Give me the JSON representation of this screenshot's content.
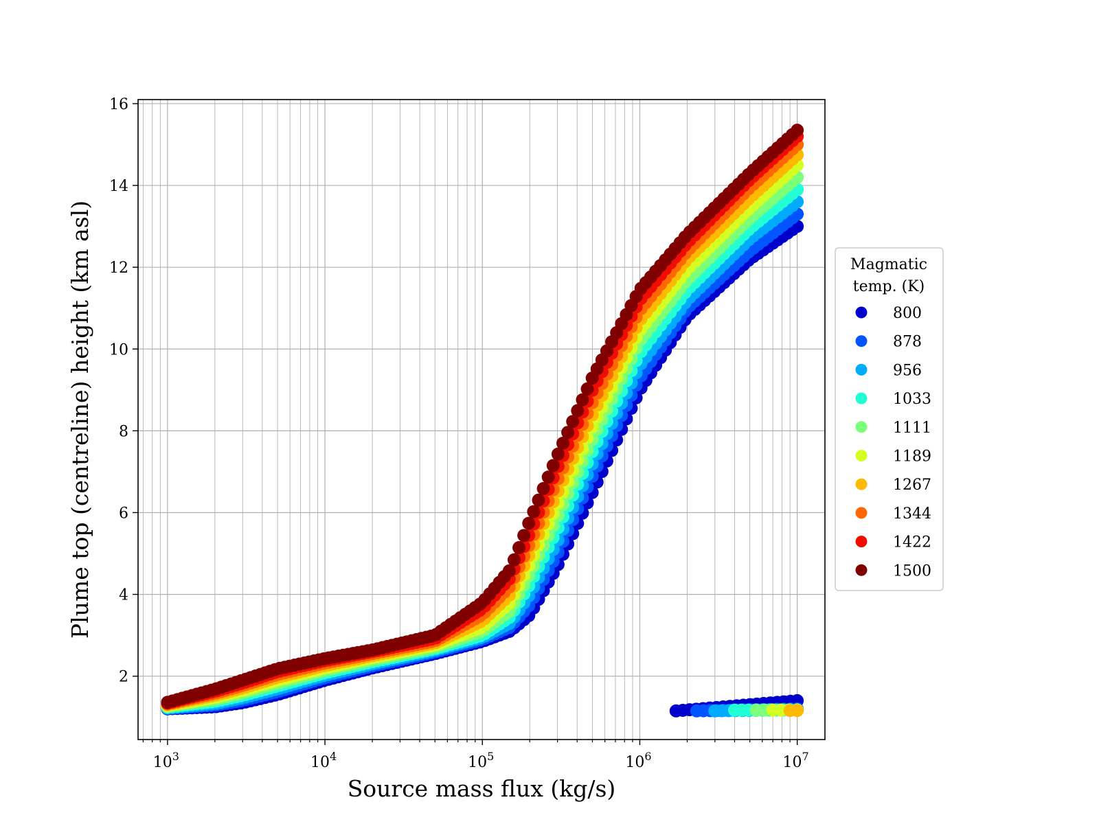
{
  "chart_data": {
    "type": "scatter",
    "xlabel": "Source mass flux (kg/s)",
    "ylabel": "Plume top (centreline) height (km asl)",
    "xscale": "log",
    "xlim": [
      650,
      15000000
    ],
    "ylim": [
      0.45,
      16.1
    ],
    "x_ticks": [
      {
        "value": 1000,
        "base": "10",
        "exp": "3"
      },
      {
        "value": 10000,
        "base": "10",
        "exp": "4"
      },
      {
        "value": 100000,
        "base": "10",
        "exp": "5"
      },
      {
        "value": 1000000,
        "base": "10",
        "exp": "6"
      },
      {
        "value": 10000000,
        "base": "10",
        "exp": "7"
      }
    ],
    "y_ticks": [
      2,
      4,
      6,
      8,
      10,
      12,
      14,
      16
    ],
    "grid": true,
    "legend": {
      "title_lines": [
        "Magmatic",
        "temp. (K)"
      ],
      "position": "right-outside"
    },
    "series": [
      {
        "name": "800",
        "color": "#0000cc",
        "x": [
          1000,
          2000,
          3000,
          5000,
          10000,
          20000,
          50000,
          100000,
          150000,
          200000,
          300000,
          500000,
          1000000,
          2000000,
          5000000,
          10000000
        ],
        "y": [
          1.2,
          1.25,
          1.35,
          1.55,
          1.9,
          2.2,
          2.55,
          2.85,
          3.1,
          3.5,
          4.7,
          6.5,
          9.0,
          10.8,
          12.2,
          13.0
        ],
        "low_x": [
          1700000,
          10000000
        ],
        "low_y": [
          1.15,
          1.4
        ]
      },
      {
        "name": "878",
        "color": "#0055ff",
        "x": [
          1000,
          2000,
          3000,
          5000,
          10000,
          20000,
          50000,
          100000,
          150000,
          200000,
          300000,
          500000,
          1000000,
          2000000,
          5000000,
          10000000
        ],
        "y": [
          1.21,
          1.29,
          1.41,
          1.62,
          1.96,
          2.25,
          2.59,
          2.9,
          3.2,
          3.75,
          5.0,
          6.9,
          9.3,
          11.0,
          12.4,
          13.3
        ],
        "low_x": [
          2300000,
          10000000
        ],
        "low_y": [
          1.15,
          1.2
        ]
      },
      {
        "name": "956",
        "color": "#00aaff",
        "x": [
          1000,
          2000,
          3000,
          5000,
          10000,
          20000,
          50000,
          100000,
          150000,
          200000,
          300000,
          500000,
          1000000,
          2000000,
          5000000,
          10000000
        ],
        "y": [
          1.22,
          1.33,
          1.47,
          1.69,
          2.02,
          2.3,
          2.63,
          2.95,
          3.3,
          4.0,
          5.3,
          7.2,
          9.6,
          11.2,
          12.7,
          13.6
        ],
        "low_x": [
          3000000,
          10000000
        ],
        "low_y": [
          1.15,
          1.18
        ]
      },
      {
        "name": "1033",
        "color": "#22ffd4",
        "x": [
          1000,
          2000,
          3000,
          5000,
          10000,
          20000,
          50000,
          100000,
          150000,
          200000,
          300000,
          500000,
          1000000,
          2000000,
          5000000,
          10000000
        ],
        "y": [
          1.24,
          1.38,
          1.53,
          1.76,
          2.08,
          2.35,
          2.67,
          3.0,
          3.45,
          4.25,
          5.6,
          7.5,
          9.9,
          11.45,
          12.95,
          13.9
        ],
        "low_x": [
          4000000,
          10000000
        ],
        "low_y": [
          1.17,
          1.17
        ]
      },
      {
        "name": "1111",
        "color": "#7cff79",
        "x": [
          1000,
          2000,
          3000,
          5000,
          10000,
          20000,
          50000,
          100000,
          150000,
          200000,
          300000,
          500000,
          1000000,
          2000000,
          5000000,
          10000000
        ],
        "y": [
          1.26,
          1.43,
          1.59,
          1.83,
          2.14,
          2.4,
          2.71,
          3.1,
          3.6,
          4.5,
          5.9,
          7.8,
          10.2,
          11.7,
          13.2,
          14.2
        ],
        "low_x": [
          5500000,
          10000000
        ],
        "low_y": [
          1.17,
          1.17
        ]
      },
      {
        "name": "1189",
        "color": "#d4ff22",
        "x": [
          1000,
          2000,
          3000,
          5000,
          10000,
          20000,
          50000,
          100000,
          150000,
          200000,
          300000,
          500000,
          1000000,
          2000000,
          5000000,
          10000000
        ],
        "y": [
          1.28,
          1.48,
          1.65,
          1.9,
          2.2,
          2.45,
          2.76,
          3.2,
          3.8,
          4.75,
          6.2,
          8.1,
          10.45,
          11.95,
          13.45,
          14.5
        ],
        "low_x": [
          7000000,
          10000000
        ],
        "low_y": [
          1.17,
          1.17
        ]
      },
      {
        "name": "1267",
        "color": "#ffb900",
        "x": [
          1000,
          2000,
          3000,
          5000,
          10000,
          20000,
          50000,
          100000,
          150000,
          200000,
          300000,
          500000,
          1000000,
          2000000,
          5000000,
          10000000
        ],
        "y": [
          1.3,
          1.53,
          1.71,
          1.97,
          2.26,
          2.5,
          2.81,
          3.35,
          4.0,
          5.0,
          6.5,
          8.4,
          10.7,
          12.2,
          13.7,
          14.75
        ],
        "low_x": [
          9000000,
          10000000
        ],
        "low_y": [
          1.16,
          1.16
        ]
      },
      {
        "name": "1344",
        "color": "#ff6800",
        "x": [
          1000,
          2000,
          3000,
          5000,
          10000,
          20000,
          50000,
          100000,
          150000,
          200000,
          300000,
          500000,
          1000000,
          2000000,
          5000000,
          10000000
        ],
        "y": [
          1.32,
          1.58,
          1.77,
          2.04,
          2.32,
          2.55,
          2.86,
          3.5,
          4.2,
          5.25,
          6.8,
          8.7,
          10.95,
          12.4,
          13.95,
          15.0
        ],
        "low_x": [],
        "low_y": []
      },
      {
        "name": "1422",
        "color": "#ee0d00",
        "x": [
          1000,
          2000,
          3000,
          5000,
          10000,
          20000,
          50000,
          100000,
          150000,
          200000,
          300000,
          500000,
          1000000,
          2000000,
          5000000,
          10000000
        ],
        "y": [
          1.34,
          1.63,
          1.83,
          2.11,
          2.38,
          2.6,
          2.92,
          3.65,
          4.4,
          5.5,
          7.1,
          9.0,
          11.2,
          12.6,
          14.15,
          15.2
        ],
        "low_x": [],
        "low_y": []
      },
      {
        "name": "1500",
        "color": "#800000",
        "x": [
          1000,
          2000,
          3000,
          5000,
          10000,
          20000,
          50000,
          100000,
          150000,
          200000,
          300000,
          500000,
          1000000,
          2000000,
          5000000,
          10000000
        ],
        "y": [
          1.36,
          1.68,
          1.9,
          2.18,
          2.43,
          2.64,
          3.0,
          3.8,
          4.6,
          5.8,
          7.4,
          9.3,
          11.45,
          12.8,
          14.3,
          15.35
        ],
        "low_x": [],
        "low_y": []
      }
    ]
  }
}
